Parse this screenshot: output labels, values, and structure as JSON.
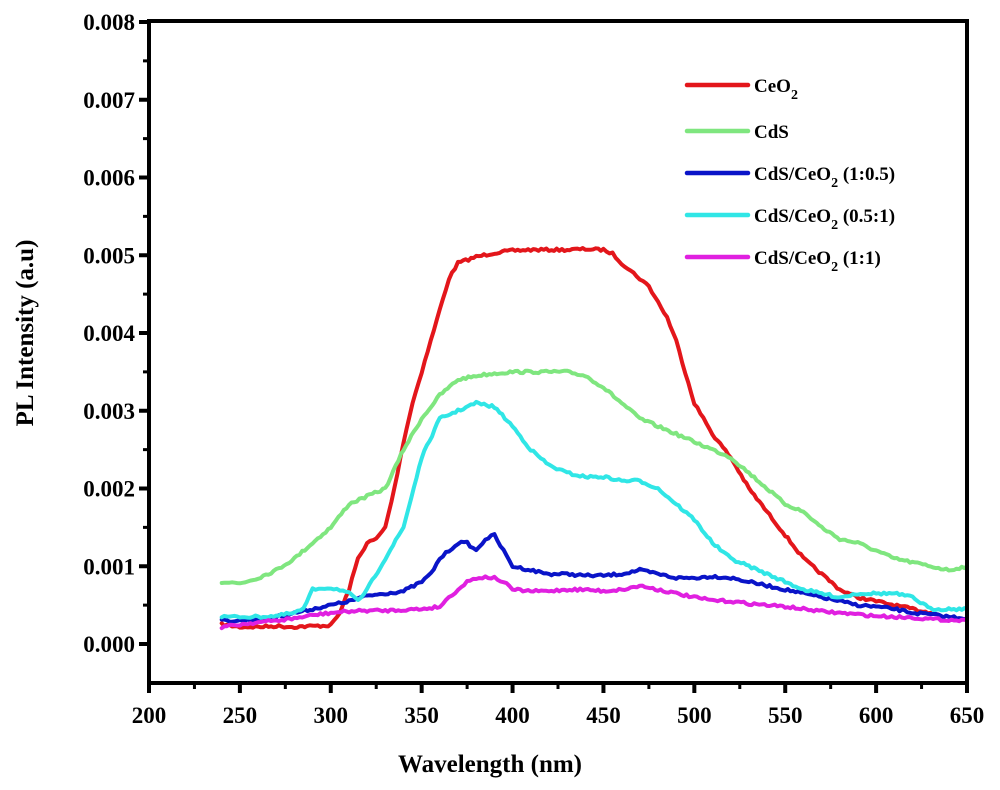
{
  "chart_data": {
    "type": "line",
    "title": "",
    "xlabel": "Wavelength (nm)",
    "ylabel": "PL Intensity (a.u)",
    "xlim": [
      200,
      650
    ],
    "ylim": [
      -0.0005,
      0.008
    ],
    "xticks": [
      200,
      250,
      300,
      350,
      400,
      450,
      500,
      550,
      600,
      650
    ],
    "xtick_labels": [
      "200",
      "250",
      "300",
      "350",
      "400",
      "450",
      "500",
      "550",
      "600",
      "650"
    ],
    "yticks": [
      0.0,
      0.001,
      0.002,
      0.003,
      0.004,
      0.005,
      0.006,
      0.007,
      0.008
    ],
    "ytick_labels": [
      "0.000",
      "0.001",
      "0.002",
      "0.003",
      "0.004",
      "0.005",
      "0.006",
      "0.007",
      "0.008"
    ],
    "grid": false,
    "legend_position": "top-right",
    "series": [
      {
        "name": "CeO2",
        "label_main": "CeO",
        "label_sub": "2",
        "label_suffix": "",
        "color": "#e3161b",
        "x": [
          240,
          250,
          260,
          270,
          280,
          290,
          300,
          305,
          310,
          315,
          320,
          325,
          330,
          335,
          340,
          345,
          350,
          355,
          360,
          365,
          370,
          380,
          390,
          400,
          410,
          420,
          430,
          440,
          450,
          455,
          460,
          465,
          470,
          475,
          480,
          485,
          490,
          495,
          500,
          505,
          510,
          520,
          530,
          540,
          550,
          560,
          570,
          580,
          590,
          600,
          610,
          620,
          630
        ],
        "y": [
          0.00025,
          0.00022,
          0.00022,
          0.00023,
          0.00022,
          0.00023,
          0.00024,
          0.0004,
          0.0007,
          0.0011,
          0.0013,
          0.00135,
          0.0015,
          0.002,
          0.0026,
          0.0031,
          0.0035,
          0.0039,
          0.0043,
          0.0047,
          0.0049,
          0.00498,
          0.00503,
          0.00506,
          0.00507,
          0.00507,
          0.00507,
          0.00508,
          0.00507,
          0.00502,
          0.0049,
          0.0048,
          0.0047,
          0.0046,
          0.0044,
          0.0042,
          0.0039,
          0.0035,
          0.0031,
          0.0029,
          0.0027,
          0.0024,
          0.002,
          0.0017,
          0.0014,
          0.0011,
          0.0009,
          0.0007,
          0.0006,
          0.00055,
          0.0005,
          0.00045,
          0.0004
        ]
      },
      {
        "name": "CdS",
        "label_main": "CdS",
        "label_sub": "",
        "label_suffix": "",
        "color": "#7fe67f",
        "x": [
          240,
          250,
          260,
          270,
          280,
          290,
          300,
          310,
          320,
          330,
          340,
          350,
          360,
          370,
          380,
          390,
          400,
          410,
          420,
          430,
          440,
          450,
          460,
          470,
          480,
          490,
          500,
          510,
          520,
          530,
          540,
          550,
          560,
          570,
          580,
          590,
          600,
          610,
          620,
          630,
          640,
          650
        ],
        "y": [
          0.0008,
          0.00078,
          0.00085,
          0.00095,
          0.0011,
          0.0013,
          0.0015,
          0.0018,
          0.0019,
          0.002,
          0.0025,
          0.0029,
          0.0032,
          0.0034,
          0.00345,
          0.00348,
          0.0035,
          0.0035,
          0.0035,
          0.0035,
          0.00345,
          0.0033,
          0.0031,
          0.0029,
          0.0028,
          0.0027,
          0.0026,
          0.0025,
          0.0024,
          0.0022,
          0.002,
          0.0018,
          0.0017,
          0.0015,
          0.00135,
          0.0013,
          0.0012,
          0.0011,
          0.00105,
          0.001,
          0.00095,
          0.001
        ]
      },
      {
        "name": "CdS/CeO2 (1:0.5)",
        "label_main": "CdS/CeO",
        "label_sub": "2",
        "label_suffix": " (1:0.5)",
        "color": "#0a14c8",
        "x": [
          240,
          250,
          260,
          270,
          280,
          290,
          300,
          310,
          320,
          330,
          340,
          350,
          355,
          360,
          365,
          370,
          375,
          380,
          385,
          390,
          395,
          400,
          410,
          420,
          430,
          440,
          450,
          460,
          470,
          480,
          490,
          500,
          510,
          520,
          530,
          540,
          550,
          560,
          570,
          580,
          590,
          600,
          610,
          620,
          630,
          640,
          650
        ],
        "y": [
          0.0003,
          0.0003,
          0.00032,
          0.00035,
          0.0004,
          0.00045,
          0.0005,
          0.00055,
          0.00062,
          0.00065,
          0.00068,
          0.0008,
          0.0009,
          0.0011,
          0.0012,
          0.0013,
          0.0013,
          0.0012,
          0.00135,
          0.0014,
          0.0012,
          0.001,
          0.00095,
          0.0009,
          0.0009,
          0.00088,
          0.00088,
          0.0009,
          0.00095,
          0.0009,
          0.00085,
          0.00085,
          0.00087,
          0.00085,
          0.0008,
          0.00075,
          0.0007,
          0.00065,
          0.0006,
          0.00055,
          0.0005,
          0.00048,
          0.00045,
          0.0004,
          0.00038,
          0.00035,
          0.00033
        ]
      },
      {
        "name": "CdS/CeO2 (0.5:1)",
        "label_main": "CdS/CeO",
        "label_sub": "2",
        "label_suffix": " (0.5:1)",
        "color": "#30e6e6",
        "x": [
          240,
          250,
          260,
          270,
          280,
          285,
          290,
          295,
          300,
          305,
          310,
          315,
          320,
          330,
          340,
          350,
          360,
          370,
          380,
          390,
          400,
          410,
          420,
          430,
          440,
          450,
          460,
          470,
          480,
          490,
          500,
          510,
          520,
          530,
          540,
          550,
          560,
          570,
          580,
          590,
          600,
          610,
          620,
          630,
          640,
          650
        ],
        "y": [
          0.00035,
          0.00035,
          0.00035,
          0.00036,
          0.0004,
          0.00045,
          0.0007,
          0.00072,
          0.00072,
          0.0007,
          0.00065,
          0.00055,
          0.0007,
          0.0011,
          0.0015,
          0.0024,
          0.0029,
          0.003,
          0.0031,
          0.00305,
          0.0028,
          0.0025,
          0.0023,
          0.0022,
          0.00215,
          0.00215,
          0.0021,
          0.0021,
          0.002,
          0.0018,
          0.0016,
          0.0013,
          0.0011,
          0.001,
          0.0009,
          0.0008,
          0.0007,
          0.00065,
          0.0006,
          0.00065,
          0.00065,
          0.00065,
          0.0006,
          0.00045,
          0.00045,
          0.00045
        ]
      },
      {
        "name": "CdS/CeO2 (1:1)",
        "label_main": "CdS/CeO",
        "label_sub": "2",
        "label_suffix": " (1:1)",
        "color": "#e020e0",
        "x": [
          240,
          250,
          260,
          270,
          280,
          290,
          300,
          310,
          320,
          330,
          340,
          350,
          360,
          365,
          370,
          375,
          380,
          385,
          390,
          395,
          400,
          410,
          420,
          430,
          440,
          450,
          460,
          465,
          470,
          480,
          490,
          500,
          510,
          520,
          530,
          540,
          550,
          560,
          570,
          580,
          590,
          600,
          610,
          620,
          630,
          640,
          650
        ],
        "y": [
          0.00022,
          0.00025,
          0.00028,
          0.0003,
          0.00033,
          0.00037,
          0.0004,
          0.00042,
          0.00043,
          0.00043,
          0.00044,
          0.00045,
          0.00048,
          0.0006,
          0.0007,
          0.0008,
          0.00085,
          0.00086,
          0.00085,
          0.0008,
          0.0007,
          0.00068,
          0.00068,
          0.0007,
          0.0007,
          0.00068,
          0.0007,
          0.00072,
          0.00075,
          0.0007,
          0.00065,
          0.0006,
          0.00056,
          0.00055,
          0.00052,
          0.0005,
          0.00048,
          0.00045,
          0.00042,
          0.0004,
          0.00038,
          0.00036,
          0.00035,
          0.00034,
          0.00032,
          0.00031,
          0.0003
        ]
      }
    ]
  }
}
